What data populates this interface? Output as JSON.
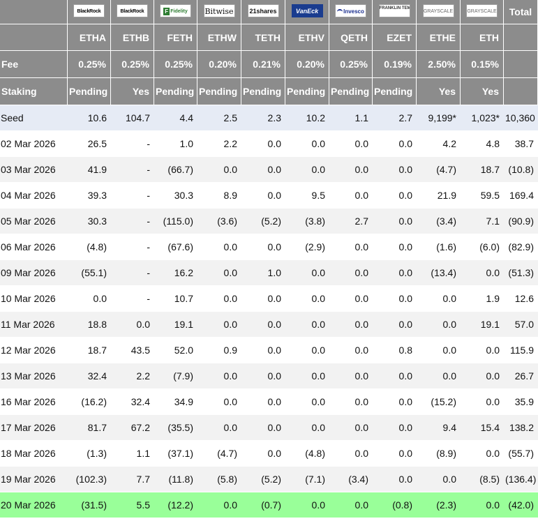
{
  "columns": [
    {
      "issuer": "BlackRock",
      "ticker": "ETHA",
      "fee": "0.25%",
      "staking": "Pending"
    },
    {
      "issuer": "BlackRock",
      "ticker": "ETHB",
      "fee": "0.25%",
      "staking": "Yes"
    },
    {
      "issuer": "Fidelity",
      "ticker": "FETH",
      "fee": "0.25%",
      "staking": "Pending"
    },
    {
      "issuer": "Bitwise",
      "ticker": "ETHW",
      "fee": "0.20%",
      "staking": "Pending"
    },
    {
      "issuer": "21shares",
      "ticker": "TETH",
      "fee": "0.21%",
      "staking": "Pending"
    },
    {
      "issuer": "VanEck",
      "ticker": "ETHV",
      "fee": "0.20%",
      "staking": "Pending"
    },
    {
      "issuer": "Invesco",
      "ticker": "QETH",
      "fee": "0.25%",
      "staking": "Pending"
    },
    {
      "issuer": "FRANKLIN TEMPLETON",
      "ticker": "EZET",
      "fee": "0.19%",
      "staking": "Pending"
    },
    {
      "issuer": "GRAYSCALE",
      "ticker": "ETHE",
      "fee": "2.50%",
      "staking": "Yes"
    },
    {
      "issuer": "GRAYSCALE",
      "ticker": "ETH",
      "fee": "0.15%",
      "staking": "Yes"
    }
  ],
  "header": {
    "total_label": "Total",
    "fee_label": "Fee",
    "staking_label": "Staking"
  },
  "rows": [
    {
      "label": "Seed",
      "values": [
        "10.6",
        "104.7",
        "4.4",
        "2.5",
        "2.3",
        "10.2",
        "1.1",
        "2.7",
        "9,199*",
        "1,023*"
      ],
      "total": "10,360",
      "style": "seed"
    },
    {
      "label": "02 Mar 2026",
      "values": [
        "26.5",
        "-",
        "1.0",
        "2.2",
        "0.0",
        "0.0",
        "0.0",
        "0.0",
        "4.2",
        "4.8"
      ],
      "total": "38.7"
    },
    {
      "label": "03 Mar 2026",
      "values": [
        "41.9",
        "-",
        "(66.7)",
        "0.0",
        "0.0",
        "0.0",
        "0.0",
        "0.0",
        "(4.7)",
        "18.7"
      ],
      "total": "(10.8)"
    },
    {
      "label": "04 Mar 2026",
      "values": [
        "39.3",
        "-",
        "30.3",
        "8.9",
        "0.0",
        "9.5",
        "0.0",
        "0.0",
        "21.9",
        "59.5"
      ],
      "total": "169.4"
    },
    {
      "label": "05 Mar 2026",
      "values": [
        "30.3",
        "-",
        "(115.0)",
        "(3.6)",
        "(5.2)",
        "(3.8)",
        "2.7",
        "0.0",
        "(3.4)",
        "7.1"
      ],
      "total": "(90.9)"
    },
    {
      "label": "06 Mar 2026",
      "values": [
        "(4.8)",
        "-",
        "(67.6)",
        "0.0",
        "0.0",
        "(2.9)",
        "0.0",
        "0.0",
        "(1.6)",
        "(6.0)"
      ],
      "total": "(82.9)"
    },
    {
      "label": "09 Mar 2026",
      "values": [
        "(55.1)",
        "-",
        "16.2",
        "0.0",
        "1.0",
        "0.0",
        "0.0",
        "0.0",
        "(13.4)",
        "0.0"
      ],
      "total": "(51.3)"
    },
    {
      "label": "10 Mar 2026",
      "values": [
        "0.0",
        "-",
        "10.7",
        "0.0",
        "0.0",
        "0.0",
        "0.0",
        "0.0",
        "0.0",
        "1.9"
      ],
      "total": "12.6"
    },
    {
      "label": "11 Mar 2026",
      "values": [
        "18.8",
        "0.0",
        "19.1",
        "0.0",
        "0.0",
        "0.0",
        "0.0",
        "0.0",
        "0.0",
        "19.1"
      ],
      "total": "57.0"
    },
    {
      "label": "12 Mar 2026",
      "values": [
        "18.7",
        "43.5",
        "52.0",
        "0.9",
        "0.0",
        "0.0",
        "0.0",
        "0.8",
        "0.0",
        "0.0"
      ],
      "total": "115.9"
    },
    {
      "label": "13 Mar 2026",
      "values": [
        "32.4",
        "2.2",
        "(7.9)",
        "0.0",
        "0.0",
        "0.0",
        "0.0",
        "0.0",
        "0.0",
        "0.0"
      ],
      "total": "26.7"
    },
    {
      "label": "16 Mar 2026",
      "values": [
        "(16.2)",
        "32.4",
        "34.9",
        "0.0",
        "0.0",
        "0.0",
        "0.0",
        "0.0",
        "(15.2)",
        "0.0"
      ],
      "total": "35.9"
    },
    {
      "label": "17 Mar 2026",
      "values": [
        "81.7",
        "67.2",
        "(35.5)",
        "0.0",
        "0.0",
        "0.0",
        "0.0",
        "0.0",
        "9.4",
        "15.4"
      ],
      "total": "138.2"
    },
    {
      "label": "18 Mar 2026",
      "values": [
        "(1.3)",
        "1.1",
        "(37.1)",
        "(4.7)",
        "0.0",
        "(4.8)",
        "0.0",
        "0.0",
        "(8.9)",
        "0.0"
      ],
      "total": "(55.7)"
    },
    {
      "label": "19 Mar 2026",
      "values": [
        "(102.3)",
        "7.7",
        "(11.8)",
        "(5.8)",
        "(5.2)",
        "(7.1)",
        "(3.4)",
        "0.0",
        "0.0",
        "(8.5)"
      ],
      "total": "(136.4)"
    },
    {
      "label": "20 Mar 2026",
      "values": [
        "(31.5)",
        "5.5",
        "(12.2)",
        "0.0",
        "(0.7)",
        "0.0",
        "0.0",
        "(0.8)",
        "(2.3)",
        "0.0"
      ],
      "total": "(42.0)",
      "style": "latest"
    }
  ],
  "colors": {
    "header_bg": "#8c8c8c",
    "seed_bg": "#e6ebf5",
    "stripe_bg": "#f2f2f2",
    "latest_bg": "#99ff99",
    "negative": "#d40000"
  }
}
